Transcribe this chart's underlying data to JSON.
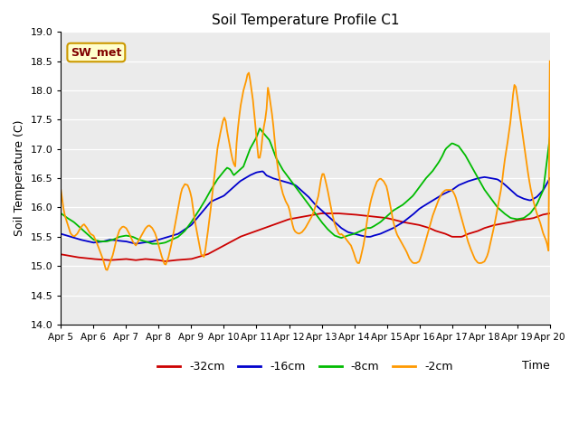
{
  "title": "Soil Temperature Profile C1",
  "xlabel": "Time",
  "ylabel": "Soil Temperature (C)",
  "ylim": [
    14.0,
    19.0
  ],
  "yticks": [
    14.0,
    14.5,
    15.0,
    15.5,
    16.0,
    16.5,
    17.0,
    17.5,
    18.0,
    18.5,
    19.0
  ],
  "xtick_labels": [
    "Apr 5",
    "Apr 6",
    "Apr 7",
    "Apr 8",
    "Apr 9",
    "Apr 10",
    "Apr 11",
    "Apr 12",
    "Apr 13",
    "Apr 14",
    "Apr 15",
    "Apr 16",
    "Apr 17",
    "Apr 18",
    "Apr 19",
    "Apr 20"
  ],
  "annotation_text": "SW_met",
  "annotation_bg": "#ffffcc",
  "annotation_border": "#cc9900",
  "annotation_textcolor": "#800000",
  "colors": {
    "-32cm": "#cc0000",
    "-16cm": "#0000cc",
    "-8cm": "#00bb00",
    "-2cm": "#ff9900"
  },
  "background_color": "#ebebeb",
  "line_width": 1.3
}
